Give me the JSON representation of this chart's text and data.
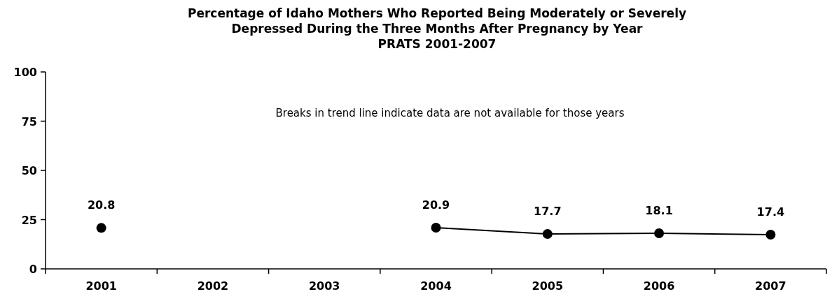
{
  "chart_data": {
    "type": "line",
    "title": "Percentage of Idaho Mothers Who Reported Being Moderately or Severely Depressed During the Three Months After Pregnancy by Year",
    "subtitle": "PRATS 2001-2007",
    "categories": [
      "2001",
      "2002",
      "2003",
      "2004",
      "2005",
      "2006",
      "2007"
    ],
    "series": [
      {
        "color": "#000000",
        "values": [
          20.8,
          null,
          null,
          20.9,
          17.7,
          18.1,
          17.4
        ]
      }
    ],
    "ylim": [
      0,
      100
    ],
    "yticks": [
      0,
      25,
      50,
      75,
      100
    ],
    "grid": false,
    "marker": "circle",
    "line_style": "solid",
    "data_labels": true,
    "annotations": [
      "Breaks in trend line indicate data are not available for those years"
    ]
  }
}
